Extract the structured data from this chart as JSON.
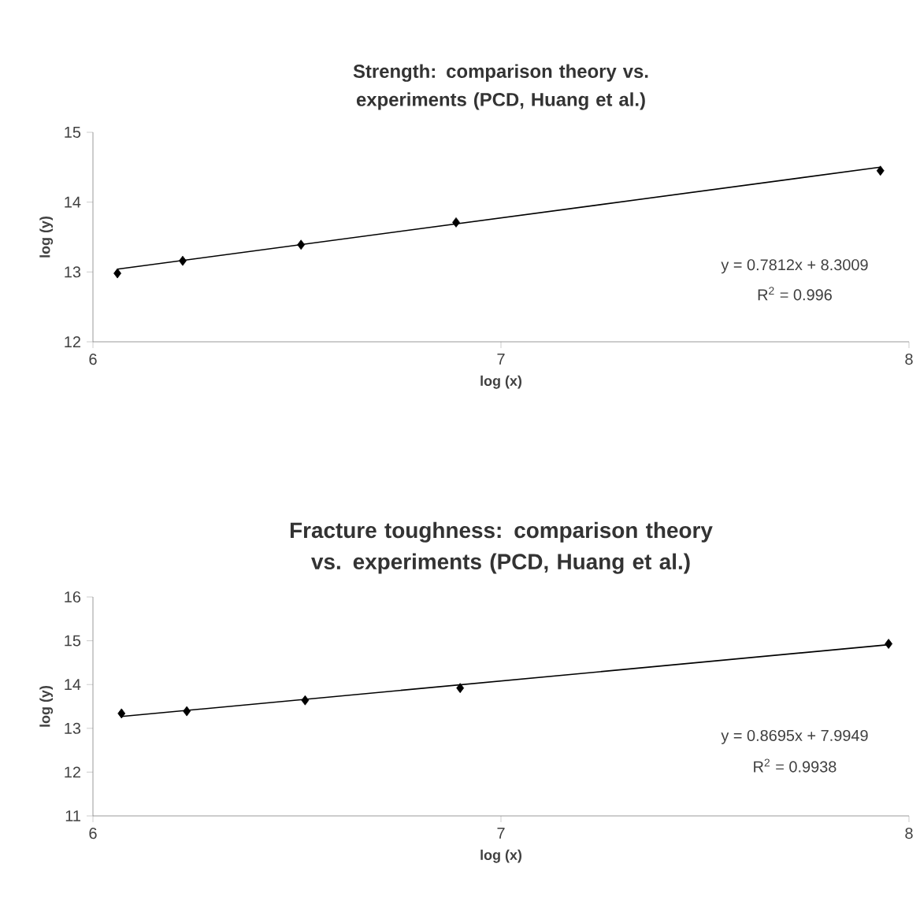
{
  "chart_data": [
    {
      "type": "scatter",
      "title": "Strength: comparison theory vs. experiments (PCD, Huang et al.)",
      "xlabel": "log (x)",
      "ylabel": "log (y)",
      "xlim": [
        6,
        8
      ],
      "xticks": [
        6,
        7,
        8
      ],
      "ylim": [
        12,
        15
      ],
      "yticks": [
        12,
        13,
        14,
        15
      ],
      "grid": false,
      "series": [
        {
          "marker": "diamond",
          "color": "#000000",
          "x": [
            6.06,
            6.22,
            6.51,
            6.89,
            7.93
          ],
          "values": [
            12.98,
            13.16,
            13.39,
            13.71,
            14.45
          ]
        },
        {
          "type": "line",
          "line_style": "solid",
          "color": "#000000",
          "x": [
            6.06,
            7.93
          ],
          "values": [
            13.04,
            14.5
          ]
        }
      ],
      "annotations": [
        "y = 0.7812x + 8.3009",
        "R$^{2}$ = 0.996"
      ]
    },
    {
      "type": "scatter",
      "title": "Fracture toughness: comparison theory vs. experiments (PCD, Huang et al.)",
      "xlabel": "log (x)",
      "ylabel": "log (y)",
      "xlim": [
        6,
        8
      ],
      "xticks": [
        6,
        7,
        8
      ],
      "ylim": [
        11,
        16
      ],
      "yticks": [
        11,
        12,
        13,
        14,
        15,
        16
      ],
      "grid": false,
      "series": [
        {
          "marker": "diamond",
          "color": "#000000",
          "x": [
            6.07,
            6.23,
            6.52,
            6.9,
            7.95
          ],
          "values": [
            13.34,
            13.39,
            13.64,
            13.92,
            14.93
          ]
        },
        {
          "type": "line",
          "line_style": "solid",
          "color": "#000000",
          "x": [
            6.07,
            7.95
          ],
          "values": [
            13.27,
            14.91
          ]
        }
      ],
      "annotations": [
        "y = 0.8695x + 7.9949",
        "R$^{2}$ = 0.9938"
      ]
    }
  ]
}
